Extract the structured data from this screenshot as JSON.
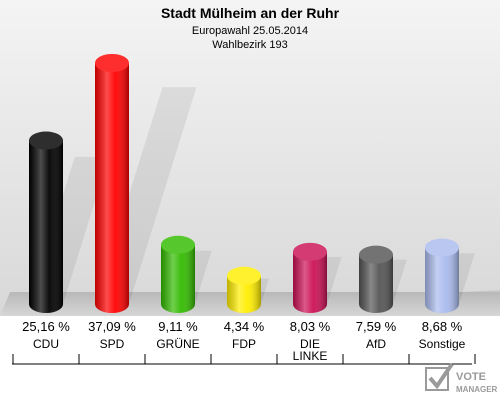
{
  "header": {
    "title": "Stadt Mülheim an der Ruhr",
    "subtitle1": "Europawahl 25.05.2014",
    "subtitle2": "Wahlbezirk 193"
  },
  "chart_data": {
    "type": "bar",
    "categories": [
      "CDU",
      "SPD",
      "GRÜNE",
      "FDP",
      "DIE LINKE",
      "AfD",
      "Sonstige"
    ],
    "values": [
      25.16,
      37.09,
      9.11,
      4.34,
      8.03,
      7.59,
      8.68
    ],
    "value_labels": [
      "25,16 %",
      "37,09 %",
      "9,11 %",
      "4,34 %",
      "8,03 %",
      "7,59 %",
      "8,68 %"
    ],
    "colors": [
      "#000000",
      "#ff0000",
      "#33bb00",
      "#ffee00",
      "#cc1155",
      "#555555",
      "#aabbee"
    ],
    "ylim": [
      0,
      37.09
    ],
    "grid": false
  },
  "logo": {
    "line1": "VOTE",
    "line2": "MANAGER"
  }
}
